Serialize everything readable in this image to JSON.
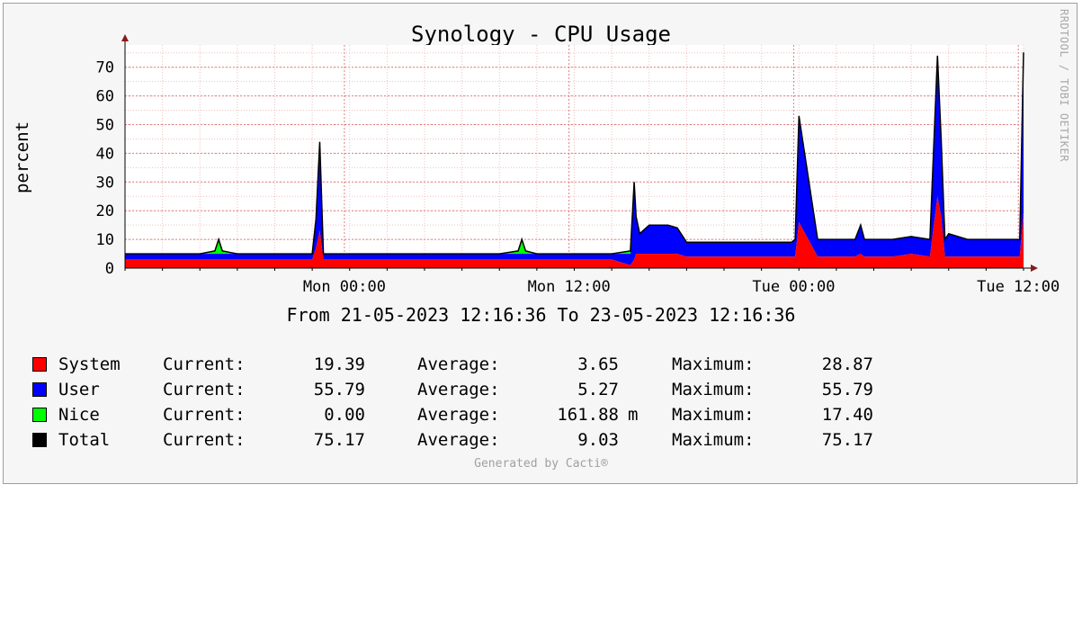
{
  "chart_data": {
    "type": "area",
    "title": "Synology - CPU Usage",
    "ylabel": "percent",
    "subtitle": "From 21-05-2023 12:16:36 To 23-05-2023 12:16:36",
    "ylim": [
      0,
      75
    ],
    "yticks": [
      "0",
      "10",
      "20",
      "30",
      "40",
      "50",
      "60",
      "70"
    ],
    "xlim_hours": [
      0,
      48
    ],
    "xticks": [
      {
        "label": "Mon 00:00",
        "hour": 11.72
      },
      {
        "label": "Mon 12:00",
        "hour": 23.72
      },
      {
        "label": "Tue 00:00",
        "hour": 35.72
      },
      {
        "label": "Tue 12:00",
        "hour": 47.72
      }
    ],
    "grid": true,
    "stacked": true,
    "series": [
      {
        "name": "System",
        "color": "#ff0000"
      },
      {
        "name": "User",
        "color": "#0000ff"
      },
      {
        "name": "Nice",
        "color": "#00ff00"
      },
      {
        "name": "Total",
        "color": "#000000"
      }
    ],
    "hours": [
      0,
      1,
      2,
      3,
      4,
      4.8,
      5,
      5.2,
      6,
      8,
      9,
      10,
      10.2,
      10.4,
      10.6,
      11,
      12,
      14,
      16,
      20,
      21,
      21.2,
      21.4,
      22,
      24,
      26,
      27,
      27.2,
      27.3,
      27.5,
      28,
      28.5,
      29,
      29.5,
      30,
      31,
      32,
      33,
      34,
      35,
      35.6,
      35.8,
      36,
      37,
      38,
      39,
      39.3,
      39.5,
      40,
      41,
      42,
      43,
      43.4,
      43.6,
      43.8,
      44,
      45,
      46,
      47,
      47.5,
      47.8,
      48
    ],
    "system": [
      3,
      3,
      3,
      3,
      3,
      3,
      3,
      3,
      3,
      3,
      3,
      3,
      7,
      13,
      3,
      3,
      3,
      3,
      3,
      3,
      3,
      3,
      3,
      3,
      3,
      3,
      1,
      3,
      5,
      5,
      5,
      5,
      5,
      5,
      4,
      4,
      4,
      4,
      4,
      4,
      4,
      4,
      16,
      4,
      4,
      4,
      5,
      4,
      4,
      4,
      5,
      4,
      25,
      18,
      4,
      4,
      4,
      4,
      4,
      4,
      4,
      19.39
    ],
    "user": [
      2,
      2,
      2,
      2,
      2,
      2,
      2,
      2,
      2,
      2,
      2,
      2,
      10,
      31,
      2,
      2,
      2,
      2,
      2,
      2,
      2,
      2,
      2,
      2,
      2,
      2,
      4,
      27,
      13,
      7,
      10,
      10,
      10,
      9,
      5,
      5,
      5,
      5,
      5,
      5,
      5,
      6,
      37,
      6,
      6,
      6,
      10,
      6,
      6,
      6,
      6,
      6,
      49,
      27,
      6,
      8,
      6,
      6,
      6,
      6,
      6,
      55.79
    ],
    "nice": [
      0,
      0,
      0,
      0,
      0,
      1,
      5,
      1,
      0,
      0,
      0,
      0,
      0,
      0,
      0,
      0,
      0,
      0,
      0,
      0,
      1,
      5,
      1,
      0,
      0,
      0,
      1,
      0,
      0,
      0,
      0,
      0,
      0,
      0,
      0,
      0,
      0,
      0,
      0,
      0,
      0,
      0,
      0,
      0,
      0,
      0,
      0,
      0,
      0,
      0,
      0,
      0,
      0,
      0,
      0,
      0,
      0,
      0,
      0,
      0,
      0,
      0
    ]
  },
  "side_label": "RRDTOOL / TOBI OETIKER",
  "legend": [
    {
      "name": "System",
      "color": "#ff0000",
      "cur_label": "Current:",
      "cur": "19.39",
      "avg_label": "Average:",
      "avg": "3.65",
      "avg_unit": "",
      "max_label": "Maximum:",
      "max": "28.87"
    },
    {
      "name": "User",
      "color": "#0000ff",
      "cur_label": "Current:",
      "cur": "55.79",
      "avg_label": "Average:",
      "avg": "5.27",
      "avg_unit": "",
      "max_label": "Maximum:",
      "max": "55.79"
    },
    {
      "name": "Nice",
      "color": "#00ff00",
      "cur_label": "Current:",
      "cur": "0.00",
      "avg_label": "Average:",
      "avg": "161.88",
      "avg_unit": "m",
      "max_label": "Maximum:",
      "max": "17.40"
    },
    {
      "name": "Total",
      "color": "#000000",
      "cur_label": "Current:",
      "cur": "75.17",
      "avg_label": "Average:",
      "avg": "9.03",
      "avg_unit": "",
      "max_label": "Maximum:",
      "max": "75.17"
    }
  ],
  "footer": "Generated by Cacti®"
}
